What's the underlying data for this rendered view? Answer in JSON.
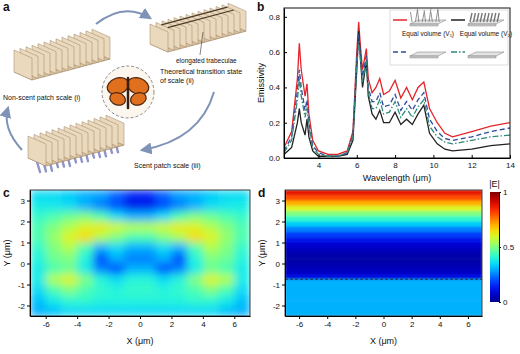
{
  "diagram": {
    "panel": "a",
    "scales": [
      "Non-scent patch scale (i)",
      "Theoretical transition state of scale (ii)",
      "Scent patch scale (iii)"
    ],
    "annotation": "elongated trabeculae"
  },
  "chart_data": [
    {
      "panel": "b",
      "type": "line",
      "x_label": "Wavelength (μm)",
      "y_label": "Emissivity",
      "x": [
        2.2,
        2.6,
        2.9,
        3.0,
        3.1,
        3.3,
        3.4,
        3.5,
        3.7,
        4.0,
        4.5,
        5.0,
        5.5,
        5.8,
        6.0,
        6.1,
        6.2,
        6.3,
        6.5,
        6.6,
        6.8,
        7.0,
        7.2,
        7.4,
        7.7,
        8.0,
        8.3,
        8.6,
        8.9,
        9.2,
        9.5,
        9.8,
        10.2,
        10.6,
        11.0,
        12.0,
        13.0,
        14.0
      ],
      "xlim": [
        2.2,
        14
      ],
      "xticks": [
        4,
        6,
        8,
        10,
        12,
        14
      ],
      "ylim": [
        0,
        0.85
      ],
      "yticks": [
        {
          "value": 0,
          "label": "0.0"
        },
        {
          "value": 0.2,
          "label": "0.2"
        },
        {
          "value": 0.4,
          "label": "0.4"
        },
        {
          "value": 0.6,
          "label": "0.6"
        },
        {
          "value": 0.8,
          "label": "0.8"
        }
      ],
      "annotations": [
        "Equal volume (V₁)",
        "Equal volume (V₂)"
      ],
      "series": [
        {
          "color": "#e3242b",
          "line_style": "solid",
          "values": [
            0.06,
            0.15,
            0.45,
            0.65,
            0.5,
            0.35,
            0.42,
            0.25,
            0.1,
            0.04,
            0.02,
            0.02,
            0.04,
            0.15,
            0.6,
            0.77,
            0.62,
            0.5,
            0.62,
            0.45,
            0.37,
            0.4,
            0.45,
            0.36,
            0.38,
            0.44,
            0.34,
            0.4,
            0.33,
            0.4,
            0.43,
            0.28,
            0.2,
            0.14,
            0.12,
            0.15,
            0.18,
            0.2
          ]
        },
        {
          "color": "#222222",
          "line_style": "solid",
          "values": [
            0.02,
            0.06,
            0.2,
            0.28,
            0.2,
            0.13,
            0.22,
            0.12,
            0.04,
            0.01,
            0.01,
            0.01,
            0.02,
            0.1,
            0.5,
            0.72,
            0.55,
            0.4,
            0.55,
            0.35,
            0.25,
            0.22,
            0.27,
            0.2,
            0.2,
            0.26,
            0.19,
            0.22,
            0.19,
            0.25,
            0.3,
            0.14,
            0.08,
            0.05,
            0.04,
            0.05,
            0.07,
            0.08
          ]
        },
        {
          "color": "#2f4b9e",
          "line_style": "dashed",
          "values": [
            0.04,
            0.12,
            0.38,
            0.5,
            0.4,
            0.27,
            0.33,
            0.2,
            0.07,
            0.03,
            0.01,
            0.01,
            0.03,
            0.13,
            0.56,
            0.7,
            0.58,
            0.46,
            0.58,
            0.4,
            0.32,
            0.32,
            0.37,
            0.29,
            0.3,
            0.36,
            0.27,
            0.32,
            0.27,
            0.33,
            0.37,
            0.22,
            0.15,
            0.11,
            0.1,
            0.12,
            0.15,
            0.17
          ]
        },
        {
          "color": "#2e8b7a",
          "line_style": "dashdot",
          "values": [
            0.03,
            0.1,
            0.33,
            0.45,
            0.35,
            0.23,
            0.29,
            0.17,
            0.06,
            0.02,
            0.01,
            0.01,
            0.03,
            0.12,
            0.53,
            0.66,
            0.55,
            0.43,
            0.55,
            0.37,
            0.28,
            0.28,
            0.33,
            0.25,
            0.26,
            0.32,
            0.23,
            0.28,
            0.23,
            0.29,
            0.33,
            0.18,
            0.12,
            0.09,
            0.08,
            0.1,
            0.12,
            0.13
          ]
        }
      ]
    },
    {
      "panel": "c",
      "type": "heatmap",
      "x_label": "X (μm)",
      "y_label": "Y (μm)",
      "xlim": [
        -7,
        7
      ],
      "xticks": [
        -6,
        -4,
        -2,
        0,
        2,
        4,
        6
      ],
      "ylim": [
        -2.5,
        3.5
      ],
      "yticks": [
        -2,
        -1,
        0,
        1,
        2,
        3
      ],
      "x_bins": [
        -7,
        -6,
        -5,
        -4,
        -3,
        -2,
        -1,
        0,
        1,
        2,
        3,
        4,
        5,
        6,
        7
      ],
      "y_bins": [
        3.5,
        3,
        2.5,
        2,
        1.5,
        1,
        0.5,
        0,
        -0.5,
        -1,
        -1.5,
        -2,
        -2.5
      ],
      "cells": [
        [
          0.35,
          0.35,
          0.33,
          0.3,
          0.28,
          0.22,
          0.15,
          0.15,
          0.22,
          0.28,
          0.3,
          0.33,
          0.35,
          0.35
        ],
        [
          0.38,
          0.37,
          0.35,
          0.3,
          0.25,
          0.2,
          0.12,
          0.12,
          0.2,
          0.25,
          0.3,
          0.35,
          0.37,
          0.38
        ],
        [
          0.42,
          0.45,
          0.48,
          0.5,
          0.45,
          0.35,
          0.3,
          0.3,
          0.35,
          0.45,
          0.5,
          0.48,
          0.45,
          0.42
        ],
        [
          0.45,
          0.5,
          0.55,
          0.6,
          0.62,
          0.58,
          0.55,
          0.55,
          0.58,
          0.62,
          0.6,
          0.55,
          0.5,
          0.45
        ],
        [
          0.45,
          0.52,
          0.6,
          0.65,
          0.55,
          0.5,
          0.45,
          0.45,
          0.5,
          0.55,
          0.65,
          0.6,
          0.52,
          0.45
        ],
        [
          0.42,
          0.5,
          0.55,
          0.45,
          0.3,
          0.35,
          0.3,
          0.3,
          0.35,
          0.3,
          0.45,
          0.55,
          0.5,
          0.42
        ],
        [
          0.4,
          0.48,
          0.5,
          0.4,
          0.2,
          0.3,
          0.25,
          0.25,
          0.3,
          0.2,
          0.4,
          0.5,
          0.48,
          0.4
        ],
        [
          0.38,
          0.45,
          0.48,
          0.38,
          0.25,
          0.2,
          0.3,
          0.3,
          0.2,
          0.25,
          0.38,
          0.48,
          0.45,
          0.38
        ],
        [
          0.38,
          0.55,
          0.6,
          0.5,
          0.4,
          0.35,
          0.4,
          0.4,
          0.35,
          0.4,
          0.5,
          0.6,
          0.55,
          0.38
        ],
        [
          0.35,
          0.45,
          0.5,
          0.45,
          0.42,
          0.4,
          0.42,
          0.42,
          0.4,
          0.42,
          0.45,
          0.5,
          0.45,
          0.35
        ],
        [
          0.32,
          0.38,
          0.42,
          0.42,
          0.4,
          0.4,
          0.4,
          0.4,
          0.4,
          0.4,
          0.42,
          0.42,
          0.38,
          0.32
        ],
        [
          0.3,
          0.32,
          0.35,
          0.35,
          0.35,
          0.35,
          0.35,
          0.35,
          0.35,
          0.35,
          0.35,
          0.35,
          0.32,
          0.3
        ]
      ]
    },
    {
      "panel": "d",
      "type": "heatmap",
      "x_label": "X (μm)",
      "y_label": "Y (μm)",
      "xlim": [
        -7,
        7
      ],
      "xticks": [
        -6,
        -4,
        -2,
        0,
        2,
        4,
        6
      ],
      "ylim": [
        -2.5,
        3.5
      ],
      "yticks": [
        -2,
        -1,
        0,
        1,
        2,
        3
      ],
      "x_bins": [
        -7,
        7
      ],
      "y_bins": [
        3.5,
        3.25,
        3,
        2.75,
        2.5,
        2.25,
        2,
        1.75,
        1.5,
        1.25,
        1,
        0.75,
        0.5,
        0.25,
        0,
        -0.25,
        -0.5,
        -0.75,
        -1,
        -1.25,
        -1.5,
        -1.75,
        -2,
        -2.25,
        -2.5
      ],
      "cells": [
        [
          0.88
        ],
        [
          0.8
        ],
        [
          0.7
        ],
        [
          0.6
        ],
        [
          0.5
        ],
        [
          0.42
        ],
        [
          0.33
        ],
        [
          0.25
        ],
        [
          0.18
        ],
        [
          0.12
        ],
        [
          0.08
        ],
        [
          0.05
        ],
        [
          0.03
        ],
        [
          0.03
        ],
        [
          0.04
        ],
        [
          0.06
        ],
        [
          0.1
        ],
        [
          0.3
        ],
        [
          0.3
        ],
        [
          0.3
        ],
        [
          0.3
        ],
        [
          0.3
        ],
        [
          0.3
        ],
        [
          0.3
        ]
      ],
      "boundary_y": -0.75,
      "colorbar": {
        "label": "|E|",
        "range": [
          0,
          1
        ],
        "ticks": [
          0,
          0.5,
          1
        ]
      }
    }
  ]
}
